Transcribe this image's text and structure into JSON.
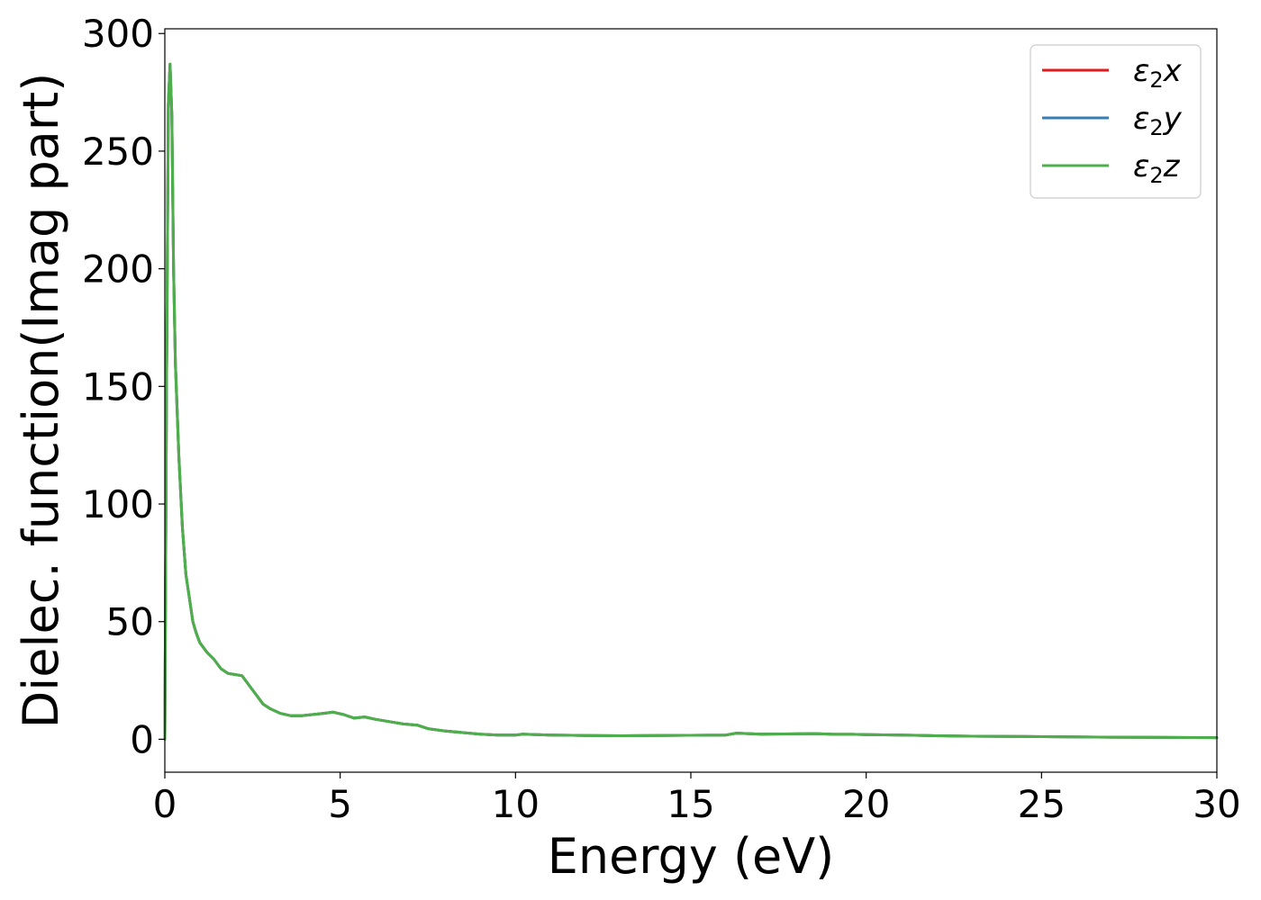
{
  "chart_data": {
    "type": "line",
    "title": "",
    "xlabel": "Energy (eV)",
    "ylabel": "Dielec. function(Imag part)",
    "xlim": [
      0,
      30
    ],
    "ylim": [
      -14,
      302
    ],
    "xticks": [
      0,
      5,
      10,
      15,
      20,
      25,
      30
    ],
    "yticks": [
      0,
      50,
      100,
      150,
      200,
      250,
      300
    ],
    "grid": false,
    "legend_position": "top-right",
    "series": [
      {
        "name": "ε2x",
        "legend_base": "ε",
        "legend_sub": "2",
        "legend_var": "x",
        "color": "#e41a1c",
        "x": [
          0,
          0.05,
          0.1,
          0.15,
          0.2,
          0.25,
          0.3,
          0.4,
          0.5,
          0.6,
          0.7,
          0.8,
          0.9,
          1.0,
          1.2,
          1.4,
          1.6,
          1.8,
          2.0,
          2.2,
          2.4,
          2.6,
          2.8,
          3.0,
          3.3,
          3.6,
          3.9,
          4.2,
          4.5,
          4.8,
          5.1,
          5.4,
          5.7,
          6.0,
          6.4,
          6.8,
          7.2,
          7.5,
          8.0,
          9.0,
          9.5,
          10.0,
          10.2,
          11.0,
          12.0,
          13.0,
          14.0,
          15.0,
          16.0,
          16.3,
          17.0,
          18.0,
          18.5,
          19.0,
          19.6,
          20.0,
          21.0,
          22.0,
          23.0,
          25.0,
          27.0,
          28.0,
          30.0
        ],
        "y": [
          0,
          150,
          270,
          287,
          265,
          200,
          160,
          120,
          90,
          70,
          60,
          50,
          45,
          41,
          37,
          34,
          30,
          28,
          27.5,
          27,
          23,
          19,
          15,
          13,
          11,
          10,
          10,
          10.5,
          11,
          11.5,
          10.5,
          9,
          9.5,
          8.5,
          7.5,
          6.5,
          6,
          4.5,
          3.5,
          2.2,
          1.8,
          1.8,
          2.2,
          1.8,
          1.6,
          1.5,
          1.6,
          1.7,
          1.8,
          2.6,
          2.2,
          2.3,
          2.4,
          2.2,
          2.1,
          2.0,
          1.8,
          1.5,
          1.3,
          1.1,
          0.9,
          0.8,
          0.7
        ]
      },
      {
        "name": "ε2y",
        "legend_base": "ε",
        "legend_sub": "2",
        "legend_var": "y",
        "color": "#377eb8",
        "x": [
          0,
          0.05,
          0.1,
          0.15,
          0.2,
          0.25,
          0.3,
          0.4,
          0.5,
          0.6,
          0.7,
          0.8,
          0.9,
          1.0,
          1.2,
          1.4,
          1.6,
          1.8,
          2.0,
          2.2,
          2.4,
          2.6,
          2.8,
          3.0,
          3.3,
          3.6,
          3.9,
          4.2,
          4.5,
          4.8,
          5.1,
          5.4,
          5.7,
          6.0,
          6.4,
          6.8,
          7.2,
          7.5,
          8.0,
          9.0,
          9.5,
          10.0,
          10.2,
          11.0,
          12.0,
          13.0,
          14.0,
          15.0,
          16.0,
          16.3,
          17.0,
          18.0,
          18.5,
          19.0,
          19.6,
          20.0,
          21.0,
          22.0,
          23.0,
          25.0,
          27.0,
          28.0,
          30.0
        ],
        "y": [
          0,
          150,
          270,
          287,
          265,
          200,
          160,
          120,
          90,
          70,
          60,
          50,
          45,
          41,
          37,
          34,
          30,
          28,
          27.5,
          27,
          23,
          19,
          15,
          13,
          11,
          10,
          10,
          10.5,
          11,
          11.5,
          10.5,
          9,
          9.5,
          8.5,
          7.5,
          6.5,
          6,
          4.5,
          3.5,
          2.2,
          1.8,
          1.8,
          2.2,
          1.8,
          1.6,
          1.5,
          1.6,
          1.7,
          1.8,
          2.6,
          2.2,
          2.3,
          2.4,
          2.2,
          2.1,
          2.0,
          1.8,
          1.5,
          1.3,
          1.1,
          0.9,
          0.8,
          0.7
        ]
      },
      {
        "name": "ε2z",
        "legend_base": "ε",
        "legend_sub": "2",
        "legend_var": "z",
        "color": "#4daf4a",
        "x": [
          0,
          0.05,
          0.1,
          0.15,
          0.2,
          0.25,
          0.3,
          0.4,
          0.5,
          0.6,
          0.7,
          0.8,
          0.9,
          1.0,
          1.2,
          1.4,
          1.6,
          1.8,
          2.0,
          2.2,
          2.4,
          2.6,
          2.8,
          3.0,
          3.3,
          3.6,
          3.9,
          4.2,
          4.5,
          4.8,
          5.1,
          5.4,
          5.7,
          6.0,
          6.4,
          6.8,
          7.2,
          7.5,
          8.0,
          9.0,
          9.5,
          10.0,
          10.2,
          11.0,
          12.0,
          13.0,
          14.0,
          15.0,
          16.0,
          16.3,
          17.0,
          18.0,
          18.5,
          19.0,
          19.6,
          20.0,
          21.0,
          22.0,
          23.0,
          25.0,
          27.0,
          28.0,
          30.0
        ],
        "y": [
          0,
          150,
          270,
          287,
          265,
          200,
          160,
          120,
          90,
          70,
          60,
          50,
          45,
          41,
          37,
          34,
          30,
          28,
          27.5,
          27,
          23,
          19,
          15,
          13,
          11,
          10,
          10,
          10.5,
          11,
          11.5,
          10.5,
          9,
          9.5,
          8.5,
          7.5,
          6.5,
          6,
          4.5,
          3.5,
          2.2,
          1.8,
          1.8,
          2.2,
          1.8,
          1.6,
          1.5,
          1.6,
          1.7,
          1.8,
          2.6,
          2.2,
          2.3,
          2.4,
          2.2,
          2.1,
          2.0,
          1.8,
          1.5,
          1.3,
          1.1,
          0.9,
          0.8,
          0.7
        ]
      }
    ]
  }
}
